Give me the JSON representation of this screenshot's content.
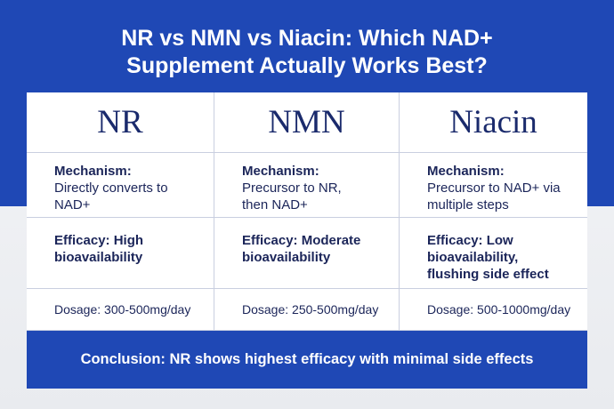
{
  "header": {
    "title_lines": [
      "NR vs NMN vs Niacin: Which NAD+",
      "Supplement Actually Works Best?"
    ]
  },
  "table": {
    "columns": [
      {
        "name": "NR",
        "mechanism_label": "Mechanism:",
        "mechanism_lines": [
          "Directly converts to",
          "NAD+"
        ],
        "efficacy_lines": [
          "Efficacy: High",
          "bioavailability"
        ],
        "dosage": "Dosage: 300-500mg/day"
      },
      {
        "name": "NMN",
        "mechanism_label": "Mechanism:",
        "mechanism_lines": [
          "Precursor to NR,",
          "then NAD+"
        ],
        "efficacy_lines": [
          "Efficacy: Moderate",
          "bioavailability"
        ],
        "dosage": "Dosage: 250-500mg/day"
      },
      {
        "name": "Niacin",
        "mechanism_label": "Mechanism:",
        "mechanism_lines": [
          "Precursor to NAD+ via",
          "multiple steps"
        ],
        "efficacy_lines": [
          "Efficacy: Low",
          "bioavailability,",
          "flushing side effect"
        ],
        "dosage": "Dosage: 500-1000mg/day"
      }
    ]
  },
  "conclusion": "Conclusion: NR shows highest efficacy with minimal side effects"
}
